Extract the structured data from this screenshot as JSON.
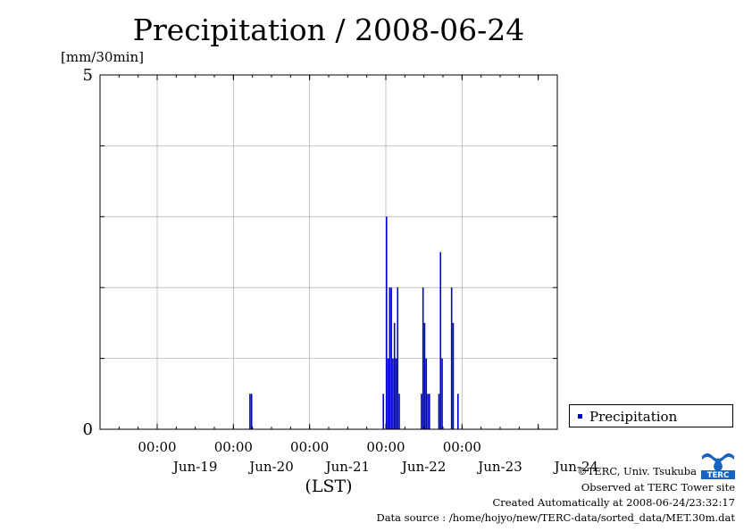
{
  "chart_data": {
    "type": "bar",
    "title": "Precipitation / 2008-06-24",
    "ylabel": "[mm/30min]",
    "xlabel": "(LST)",
    "ylim": [
      0,
      5
    ],
    "yticks": [
      0,
      5
    ],
    "xlim": [
      "2008-06-18T06:00",
      "2008-06-24T06:00"
    ],
    "x_time_ticks": [
      "00:00",
      "00:00",
      "00:00",
      "00:00",
      "00:00"
    ],
    "x_date_ticks": [
      "Jun-19",
      "Jun-20",
      "Jun-21",
      "Jun-22",
      "Jun-23",
      "Jun-24"
    ],
    "grid": true,
    "legend_position": "bottom-right",
    "series": [
      {
        "name": "Precipitation",
        "color": "#0000cc",
        "points": [
          {
            "t": "2008-06-20T05:00",
            "v": 0.5
          },
          {
            "t": "2008-06-20T05:30",
            "v": 0.5
          },
          {
            "t": "2008-06-21T23:00",
            "v": 0.5
          },
          {
            "t": "2008-06-22T00:00",
            "v": 3.0
          },
          {
            "t": "2008-06-22T00:30",
            "v": 1.0
          },
          {
            "t": "2008-06-22T01:00",
            "v": 2.0
          },
          {
            "t": "2008-06-22T01:30",
            "v": 2.0
          },
          {
            "t": "2008-06-22T02:00",
            "v": 1.0
          },
          {
            "t": "2008-06-22T02:30",
            "v": 1.5
          },
          {
            "t": "2008-06-22T03:00",
            "v": 1.0
          },
          {
            "t": "2008-06-22T03:30",
            "v": 2.0
          },
          {
            "t": "2008-06-22T04:00",
            "v": 0.5
          },
          {
            "t": "2008-06-22T11:00",
            "v": 0.5
          },
          {
            "t": "2008-06-22T11:30",
            "v": 2.0
          },
          {
            "t": "2008-06-22T12:00",
            "v": 1.5
          },
          {
            "t": "2008-06-22T12:30",
            "v": 1.0
          },
          {
            "t": "2008-06-22T13:00",
            "v": 0.5
          },
          {
            "t": "2008-06-22T13:30",
            "v": 0.5
          },
          {
            "t": "2008-06-22T16:30",
            "v": 0.5
          },
          {
            "t": "2008-06-22T17:00",
            "v": 2.5
          },
          {
            "t": "2008-06-22T17:30",
            "v": 1.0
          },
          {
            "t": "2008-06-22T20:30",
            "v": 2.0
          },
          {
            "t": "2008-06-22T21:00",
            "v": 1.5
          },
          {
            "t": "2008-06-22T22:30",
            "v": 0.5
          }
        ]
      }
    ]
  },
  "legend": {
    "label": "Precipitation"
  },
  "credits": {
    "copyright": "©TERC, Univ. Tsukuba",
    "observed": "Observed at TERC Tower site",
    "created": "Created Automatically at 2008-06-24/23:32:17",
    "source": "Data source : /home/hojyo/new/TERC-data/sorted_data/MET.30m.dat"
  },
  "logo": {
    "text": "TERC",
    "color": "#1565c0"
  }
}
